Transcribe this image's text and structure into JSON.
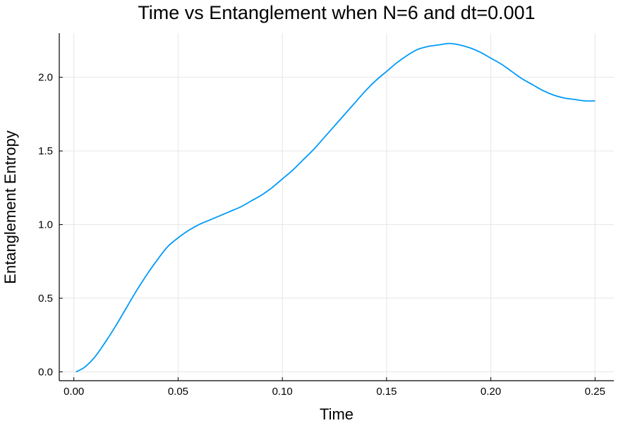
{
  "chart_data": {
    "type": "line",
    "title": "Time vs Entanglement when N=6 and dt=0.001",
    "xlabel": "Time",
    "ylabel": "Entanglement Entropy",
    "xlim": [
      -0.007,
      0.259
    ],
    "ylim": [
      -0.06,
      2.3
    ],
    "xticks": [
      0.0,
      0.05,
      0.1,
      0.15,
      0.2,
      0.25
    ],
    "xtick_labels": [
      "0.00",
      "0.05",
      "0.10",
      "0.15",
      "0.20",
      "0.25"
    ],
    "yticks": [
      0.0,
      0.5,
      1.0,
      1.5,
      2.0
    ],
    "ytick_labels": [
      "0.0",
      "0.5",
      "1.0",
      "1.5",
      "2.0"
    ],
    "grid": true,
    "legend": "none",
    "series": [
      {
        "color": "#009af9",
        "x": [
          0.001,
          0.005,
          0.01,
          0.015,
          0.02,
          0.025,
          0.03,
          0.035,
          0.04,
          0.045,
          0.05,
          0.055,
          0.06,
          0.065,
          0.07,
          0.075,
          0.08,
          0.085,
          0.09,
          0.095,
          0.1,
          0.105,
          0.11,
          0.115,
          0.12,
          0.125,
          0.13,
          0.135,
          0.14,
          0.145,
          0.15,
          0.155,
          0.16,
          0.165,
          0.17,
          0.175,
          0.18,
          0.185,
          0.19,
          0.195,
          0.2,
          0.205,
          0.21,
          0.215,
          0.22,
          0.225,
          0.23,
          0.235,
          0.24,
          0.245,
          0.25
        ],
        "y": [
          0.0,
          0.03,
          0.1,
          0.2,
          0.31,
          0.43,
          0.55,
          0.66,
          0.76,
          0.85,
          0.91,
          0.96,
          1.0,
          1.03,
          1.06,
          1.09,
          1.12,
          1.16,
          1.2,
          1.25,
          1.31,
          1.37,
          1.44,
          1.51,
          1.59,
          1.67,
          1.75,
          1.83,
          1.91,
          1.98,
          2.04,
          2.1,
          2.15,
          2.19,
          2.21,
          2.22,
          2.23,
          2.22,
          2.2,
          2.17,
          2.13,
          2.09,
          2.04,
          1.99,
          1.95,
          1.91,
          1.88,
          1.86,
          1.85,
          1.84,
          1.84
        ]
      }
    ]
  }
}
